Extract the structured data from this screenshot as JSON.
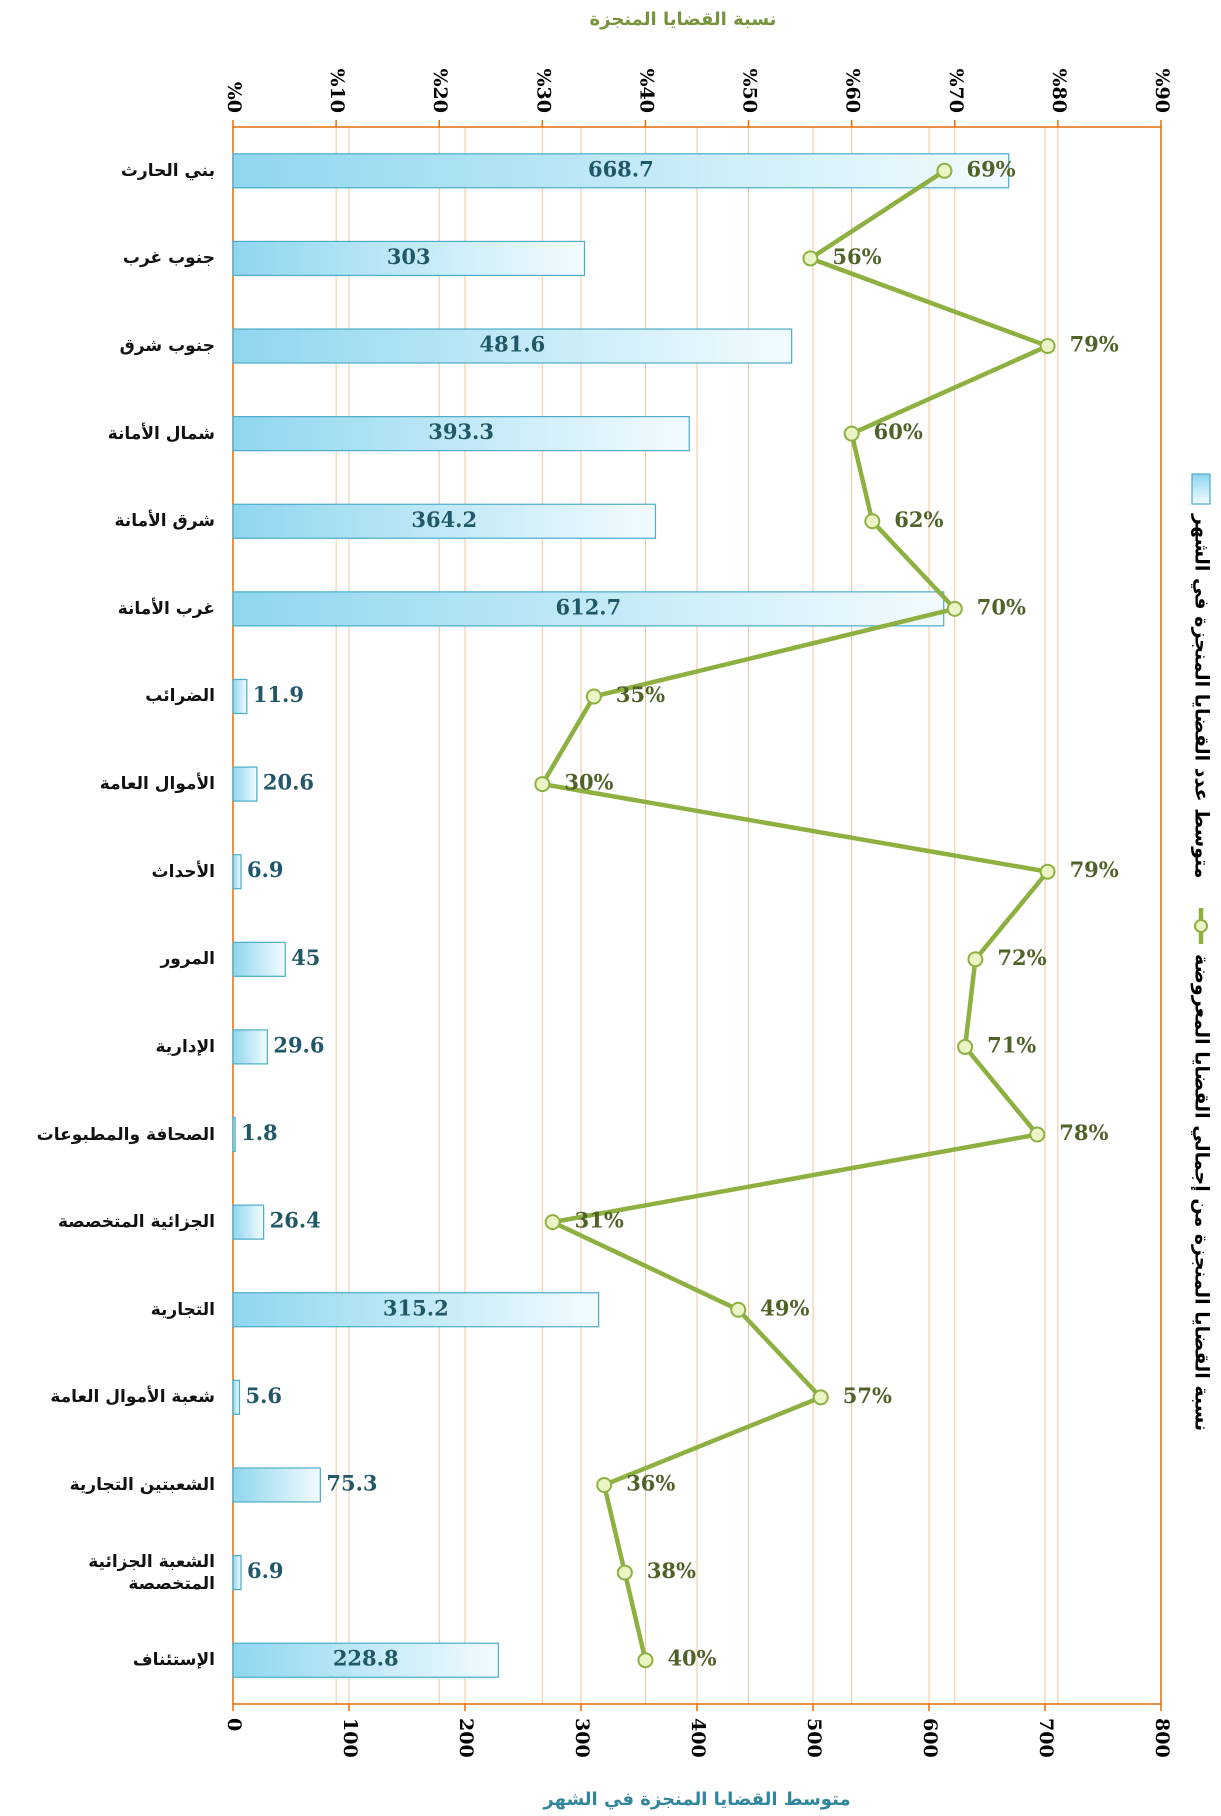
{
  "chart_data": {
    "type": "bar",
    "orientation": "horizontal",
    "categories": [
      "بني الحارث",
      "جنوب غرب",
      "جنوب شرق",
      "شمال الأمانة",
      "شرق الأمانة",
      "غرب الأمانة",
      "الضرائب",
      "الأموال العامة",
      "الأحداث",
      "المرور",
      "الإدارية",
      "الصحافة والمطبوعات",
      "الجزائية المتخصصة",
      "التجارية",
      "شعبة الأموال العامة",
      "الشعبتين التجارية",
      "الشعبة الجزائية المتخصصة",
      "الإستئناف"
    ],
    "xlabel": "متوسط القضايا المنجزة في الشهر",
    "x2label": "نسبة القضايا المنجزة",
    "xlim": [
      0,
      800
    ],
    "xticks": [
      0,
      100,
      200,
      300,
      400,
      500,
      600,
      700,
      800
    ],
    "x2lim": [
      0,
      90
    ],
    "x2ticks": [
      {
        "value": 0,
        "label": "%0"
      },
      {
        "value": 10,
        "label": "%10"
      },
      {
        "value": 20,
        "label": "%20"
      },
      {
        "value": 30,
        "label": "%30"
      },
      {
        "value": 40,
        "label": "%40"
      },
      {
        "value": 50,
        "label": "%50"
      },
      {
        "value": 60,
        "label": "%60"
      },
      {
        "value": 70,
        "label": "%70"
      },
      {
        "value": 80,
        "label": "%80"
      },
      {
        "value": 90,
        "label": "%90"
      }
    ],
    "grid": true,
    "legend": "right",
    "series": [
      {
        "name": "متوسط عدد القضايا المنجزة في الشهر",
        "type": "bar",
        "color": "#4bacc6",
        "axis": "x",
        "values": [
          668.7,
          303,
          481.6,
          393.3,
          364.2,
          612.7,
          11.9,
          20.6,
          6.9,
          45,
          29.6,
          1.8,
          26.4,
          315.2,
          5.6,
          75.3,
          6.9,
          228.8
        ]
      },
      {
        "name": "نسبة القضايا المنجزة من إجمالي القضايا المعروضة",
        "type": "line",
        "color": "#8db040",
        "axis": "x2",
        "values": [
          69,
          56,
          79,
          60,
          62,
          70,
          35,
          30,
          79,
          72,
          71,
          78,
          31,
          49,
          57,
          36,
          38,
          40
        ],
        "value_labels": [
          "69%",
          "56%",
          "79%",
          "60%",
          "62%",
          "70%",
          "35%",
          "30%",
          "79%",
          "72%",
          "71%",
          "78%",
          "31%",
          "49%",
          "57%",
          "36%",
          "38%",
          "40%"
        ]
      }
    ]
  }
}
